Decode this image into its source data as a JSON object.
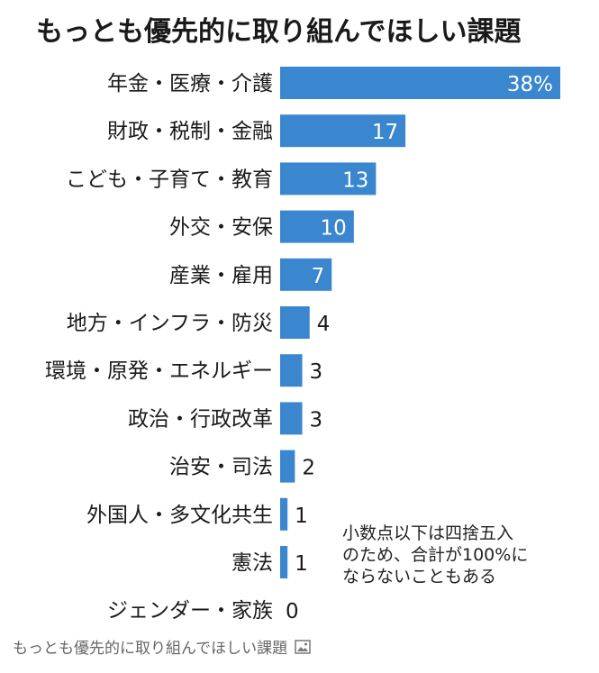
{
  "title": "もっとも優先的に取り組んでほしい課題",
  "note": "小数点以下は四捨五入\nのため、合計が100%に\nならないこともある",
  "caption": "もっとも優先的に取り組んでほしい課題",
  "caption_icon": "image-icon",
  "colors": {
    "bar": "#3a86cf",
    "label_inside": "#ffffff",
    "label_outside": "#1a1a1a"
  },
  "chart_data": {
    "type": "bar",
    "orientation": "horizontal",
    "title": "もっとも優先的に取り組んでほしい課題",
    "categories": [
      "年金・医療・介護",
      "財政・税制・金融",
      "こども・子育て・教育",
      "外交・安保",
      "産業・雇用",
      "地方・インフラ・防災",
      "環境・原発・エネルギー",
      "政治・行政改革",
      "治安・司法",
      "外国人・多文化共生",
      "憲法",
      "ジェンダー・家族"
    ],
    "values": [
      38,
      17,
      13,
      10,
      7,
      4,
      3,
      3,
      2,
      1,
      1,
      0
    ],
    "data_labels": [
      "38%",
      "17",
      "13",
      "10",
      "7",
      "4",
      "3",
      "3",
      "2",
      "1",
      "1",
      "0"
    ],
    "xlim": [
      0,
      38
    ],
    "unit": "%",
    "grid": false,
    "legend": "none"
  }
}
